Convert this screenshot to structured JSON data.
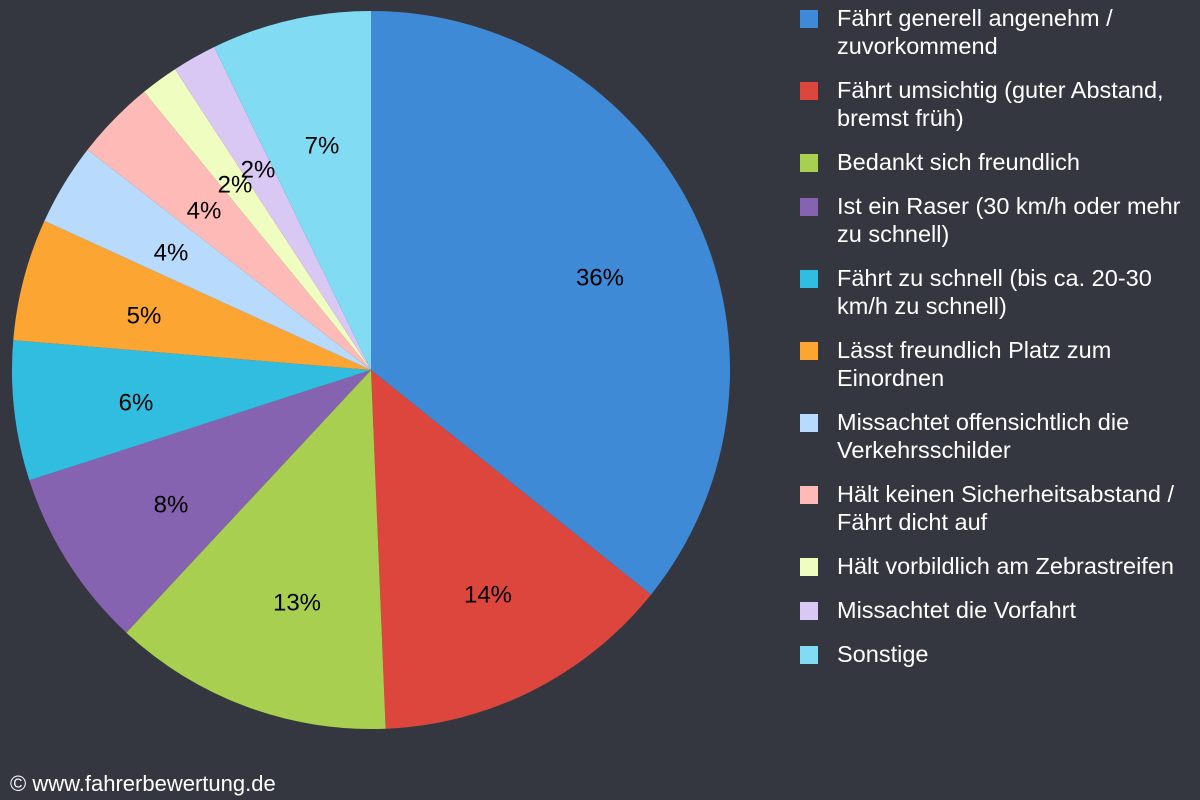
{
  "chart_data": {
    "type": "pie",
    "title": "",
    "start_angle_deg": 0,
    "direction": "clockwise",
    "legend_position": "right",
    "labels": [
      "Fährt generell angenehm / zuvorkommend",
      "Fährt umsichtig (guter Abstand, bremst früh)",
      "Bedankt sich freundlich",
      "Ist ein Raser (30 km/h oder mehr zu schnell)",
      "Fährt zu schnell (bis ca. 20-30 km/h zu schnell)",
      "Lässt freundlich Platz zum Einordnen",
      "Missachtet offensichtlich die Verkehrsschilder",
      "Hält keinen Sicherheitsabstand / Fährt dicht auf",
      "Hält vorbildlich am Zebrastreifen",
      "Missachtet die Vorfahrt",
      "Sonstige"
    ],
    "values": [
      35.8,
      13.6,
      12.6,
      8.1,
      6.3,
      5.5,
      3.7,
      3.6,
      1.7,
      2.0,
      7.2
    ],
    "value_labels": [
      "36%",
      "14%",
      "13%",
      "8%",
      "6%",
      "5%",
      "4%",
      "4%",
      "2%",
      "2%",
      "7%"
    ],
    "colors": [
      "#3e8ad6",
      "#dc463c",
      "#a8cf4f",
      "#8663b0",
      "#31bde0",
      "#fda532",
      "#b8dafd",
      "#fdbab6",
      "#f0fdc1",
      "#d8c8f3",
      "#80dbf3"
    ]
  },
  "legend": {
    "items": [
      {
        "label": "Fährt generell angenehm / zuvorkommend",
        "color": "#3e8ad6"
      },
      {
        "label": "Fährt umsichtig (guter Abstand, bremst früh)",
        "color": "#dc463c"
      },
      {
        "label": "Bedankt sich freundlich",
        "color": "#a8cf4f"
      },
      {
        "label": "Ist ein Raser (30 km/h oder mehr zu schnell)",
        "color": "#8663b0"
      },
      {
        "label": "Fährt zu schnell (bis ca. 20-30 km/h zu schnell)",
        "color": "#31bde0"
      },
      {
        "label": "Lässt freundlich Platz zum Einordnen",
        "color": "#fda532"
      },
      {
        "label": "Missachtet offensichtlich die Verkehrsschilder",
        "color": "#b8dafd"
      },
      {
        "label": "Hält keinen Sicherheitsabstand / Fährt dicht auf",
        "color": "#fdbab6"
      },
      {
        "label": "Hält vorbildlich am Zebrastreifen",
        "color": "#f0fdc1"
      },
      {
        "label": "Missachtet die Vorfahrt",
        "color": "#d8c8f3"
      },
      {
        "label": "Sonstige",
        "color": "#80dbf3"
      }
    ]
  },
  "footer": {
    "copyright": "© www.fahrerbewertung.de"
  },
  "colors": {
    "background": "#353740",
    "text": "#ffffff",
    "slice_label": "#000000"
  }
}
